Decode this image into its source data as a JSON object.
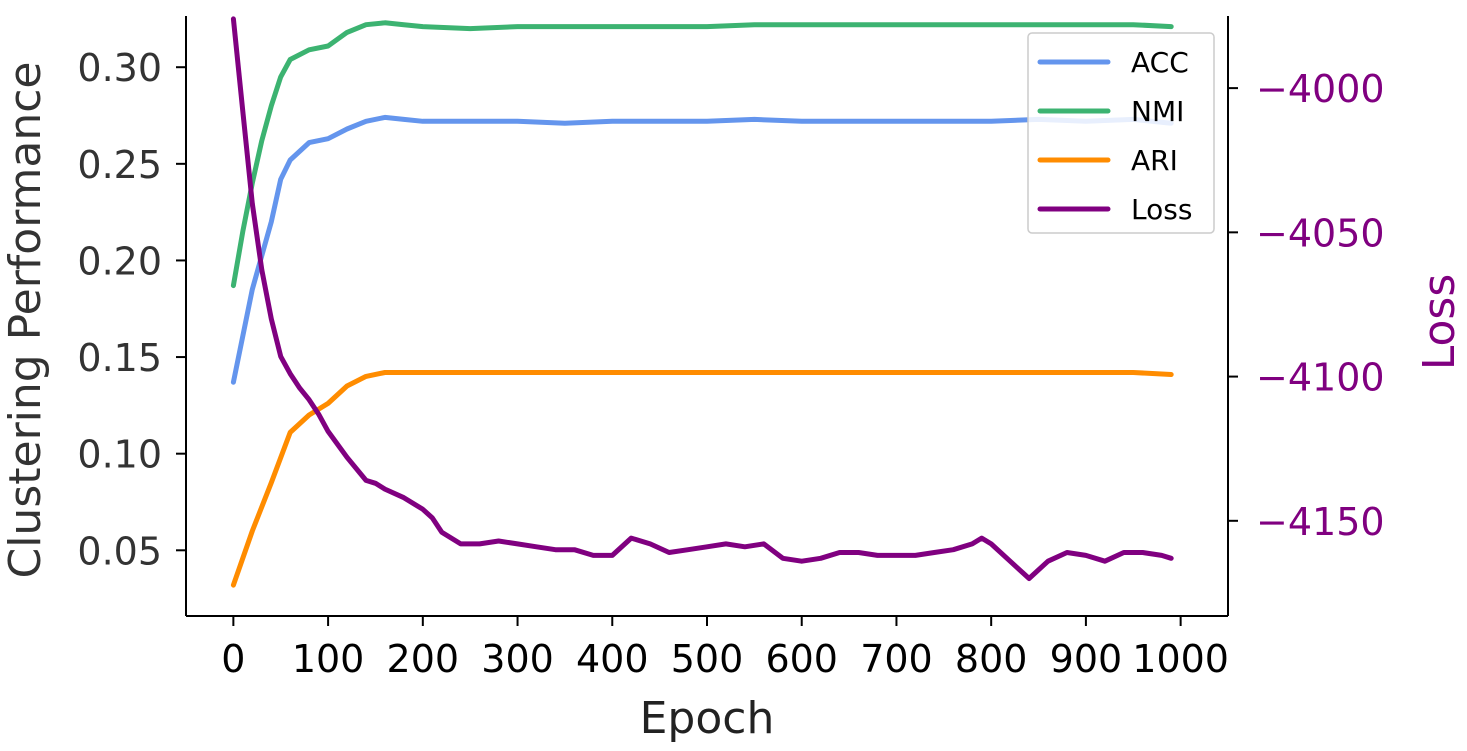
{
  "chart_data": {
    "type": "line",
    "xlabel": "Epoch",
    "ylabel_left": "Clustering Performance",
    "ylabel_right": "Loss",
    "xlim": [
      -50,
      1050
    ],
    "ylim_left": [
      0.016,
      0.3265
    ],
    "ylim_right": [
      -4183,
      -3975
    ],
    "xticks": [
      0,
      100,
      200,
      300,
      400,
      500,
      600,
      700,
      800,
      900,
      1000
    ],
    "yticks_left": [
      0.05,
      0.1,
      0.15,
      0.2,
      0.25,
      0.3
    ],
    "yticks_right": [
      -4000,
      -4050,
      -4100,
      -4150
    ],
    "xtick_labels": [
      "0",
      "100",
      "200",
      "300",
      "400",
      "500",
      "600",
      "700",
      "800",
      "900",
      "1000"
    ],
    "ytick_labels_left": [
      "0.05",
      "0.10",
      "0.15",
      "0.20",
      "0.25",
      "0.30"
    ],
    "ytick_labels_right": [
      "−4000",
      "−4050",
      "−4100",
      "−4150"
    ],
    "grid": false,
    "legend_position": "top-right",
    "series": [
      {
        "name": "ACC",
        "axis": "left",
        "color": "#6495ED",
        "x": [
          0,
          20,
          40,
          50,
          60,
          80,
          100,
          120,
          140,
          160,
          180,
          200,
          250,
          300,
          350,
          400,
          450,
          500,
          550,
          600,
          650,
          700,
          750,
          800,
          850,
          900,
          950,
          990
        ],
        "y": [
          0.137,
          0.185,
          0.22,
          0.242,
          0.252,
          0.261,
          0.263,
          0.268,
          0.272,
          0.274,
          0.273,
          0.272,
          0.272,
          0.272,
          0.271,
          0.272,
          0.272,
          0.272,
          0.273,
          0.272,
          0.272,
          0.272,
          0.272,
          0.272,
          0.273,
          0.272,
          0.273,
          0.271
        ]
      },
      {
        "name": "NMI",
        "axis": "left",
        "color": "#3CB371",
        "x": [
          0,
          10,
          20,
          30,
          40,
          50,
          60,
          80,
          100,
          120,
          140,
          160,
          180,
          200,
          250,
          300,
          350,
          400,
          450,
          500,
          550,
          600,
          650,
          700,
          750,
          800,
          850,
          900,
          950,
          990
        ],
        "y": [
          0.187,
          0.215,
          0.24,
          0.262,
          0.28,
          0.295,
          0.304,
          0.309,
          0.311,
          0.318,
          0.322,
          0.323,
          0.322,
          0.321,
          0.32,
          0.321,
          0.321,
          0.321,
          0.321,
          0.321,
          0.322,
          0.322,
          0.322,
          0.322,
          0.322,
          0.322,
          0.322,
          0.322,
          0.322,
          0.321
        ]
      },
      {
        "name": "ARI",
        "axis": "left",
        "color": "#FF8C00",
        "x": [
          0,
          20,
          40,
          60,
          80,
          100,
          120,
          140,
          160,
          180,
          200,
          250,
          300,
          350,
          400,
          450,
          500,
          550,
          600,
          650,
          700,
          750,
          800,
          850,
          900,
          950,
          990
        ],
        "y": [
          0.032,
          0.06,
          0.085,
          0.111,
          0.12,
          0.126,
          0.135,
          0.14,
          0.142,
          0.142,
          0.142,
          0.142,
          0.142,
          0.142,
          0.142,
          0.142,
          0.142,
          0.142,
          0.142,
          0.142,
          0.142,
          0.142,
          0.142,
          0.142,
          0.142,
          0.142,
          0.141
        ]
      },
      {
        "name": "Loss",
        "axis": "right",
        "color": "#800080",
        "x": [
          0,
          10,
          20,
          30,
          40,
          50,
          60,
          70,
          80,
          90,
          100,
          120,
          140,
          150,
          160,
          180,
          200,
          210,
          220,
          240,
          260,
          280,
          300,
          320,
          340,
          360,
          380,
          400,
          420,
          440,
          460,
          480,
          500,
          520,
          540,
          560,
          580,
          600,
          620,
          640,
          660,
          680,
          700,
          720,
          740,
          760,
          780,
          790,
          800,
          820,
          840,
          860,
          880,
          900,
          920,
          940,
          960,
          980,
          990
        ],
        "y": [
          -3976,
          -4008,
          -4040,
          -4063,
          -4080,
          -4093,
          -4099,
          -4104,
          -4108,
          -4113,
          -4119,
          -4128,
          -4136,
          -4137,
          -4139,
          -4142,
          -4146,
          -4149,
          -4154,
          -4158,
          -4158,
          -4157,
          -4158,
          -4159,
          -4160,
          -4160,
          -4162,
          -4162,
          -4156,
          -4158,
          -4161,
          -4160,
          -4159,
          -4158,
          -4159,
          -4158,
          -4163,
          -4164,
          -4163,
          -4161,
          -4161,
          -4162,
          -4162,
          -4162,
          -4161,
          -4160,
          -4158,
          -4156,
          -4158,
          -4164,
          -4170,
          -4164,
          -4161,
          -4162,
          -4164,
          -4161,
          -4161,
          -4162,
          -4163
        ]
      }
    ]
  }
}
